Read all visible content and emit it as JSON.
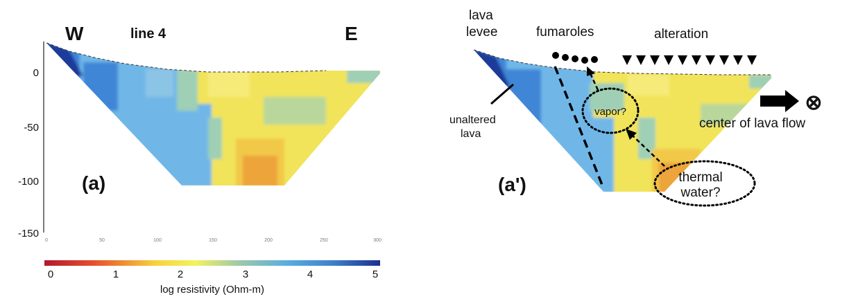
{
  "panel_a": {
    "west_label": "W",
    "east_label": "E",
    "line_label": "line 4",
    "panel_label": "(a)",
    "y_ticks": [
      "0",
      "-50",
      "-100",
      "-150"
    ],
    "x_ticks": [
      "0",
      "50",
      "100",
      "150",
      "200",
      "250",
      "300"
    ]
  },
  "panel_b": {
    "panel_label": "(a')",
    "lava_levee": [
      "lava",
      "levee"
    ],
    "fumaroles": "fumaroles",
    "alteration": "alteration",
    "unaltered_lava": [
      "unaltered",
      "lava"
    ],
    "vapor": "vapor?",
    "thermal_water": [
      "thermal",
      "water?"
    ],
    "center_of_lava_flow": "center of lava flow",
    "center_symbol": "⊗"
  },
  "colorbar": {
    "ticks": [
      "0",
      "1",
      "2",
      "3",
      "4",
      "5"
    ],
    "label": "log resistivity (Ohm-m)",
    "colors": [
      "#b2182b",
      "#e8502f",
      "#f7d23a",
      "#f3f25e",
      "#9ec9a8",
      "#5aaee0",
      "#3f7fcc",
      "#1a2f8f"
    ]
  },
  "section_colors": {
    "dark_blue": "#1a3a9a",
    "mid_blue": "#3f86d6",
    "light_blue": "#6fb7e8",
    "teal": "#9fcfb5",
    "yellow": "#f1e45a",
    "pale_yellow": "#f6ea78",
    "orange": "#eca43a"
  }
}
